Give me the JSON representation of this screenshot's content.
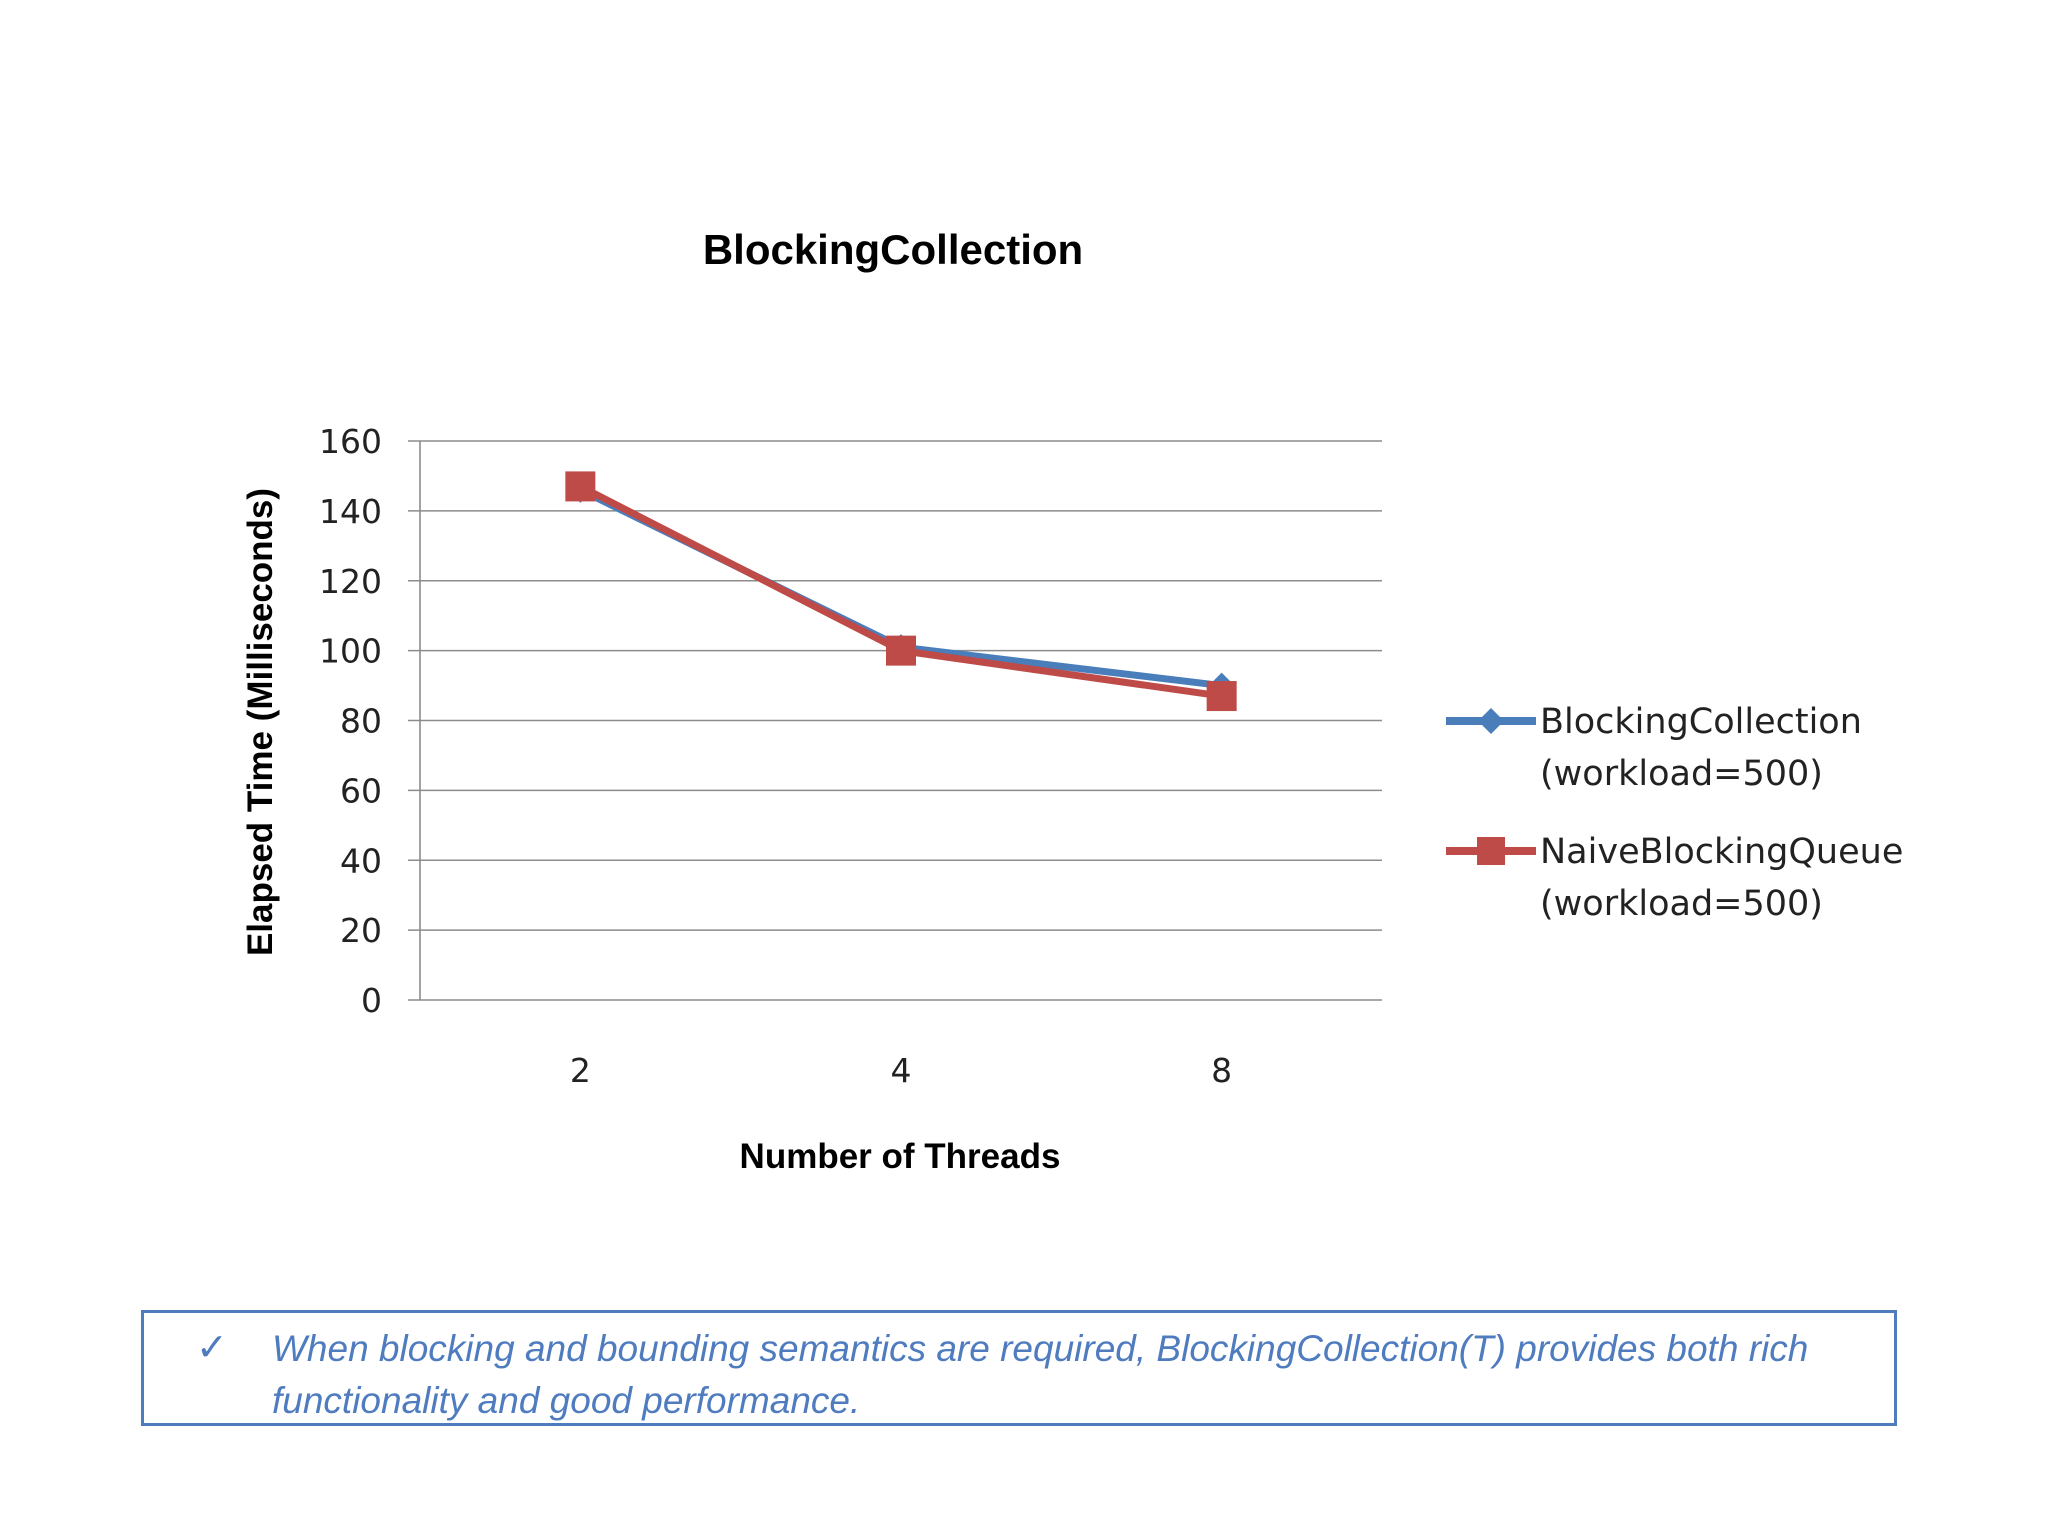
{
  "chart_data": {
    "type": "line",
    "title": "BlockingCollection",
    "xlabel": "Number of Threads",
    "ylabel": "Elapsed Time (Milliseconds)",
    "categories": [
      "2",
      "4",
      "8"
    ],
    "ylim": [
      0,
      160
    ],
    "yticks": [
      0,
      20,
      40,
      60,
      80,
      100,
      120,
      140,
      160
    ],
    "grid": true,
    "legend_position": "right",
    "series": [
      {
        "name": "BlockingCollection (workload=500)",
        "name_lines": [
          "BlockingCollection",
          "(workload=500)"
        ],
        "values": [
          146,
          101,
          90
        ],
        "color": "#4a7ebb",
        "marker": "diamond"
      },
      {
        "name": "NaiveBlockingQueue (workload=500)",
        "name_lines": [
          "NaiveBlockingQueue",
          "(workload=500)"
        ],
        "values": [
          147,
          100,
          87
        ],
        "color": "#be4b48",
        "marker": "square"
      }
    ]
  },
  "note": {
    "check_icon": "check-mark-icon",
    "text": "When blocking and bounding semantics are required, BlockingCollection(T) provides both rich functionality and good performance."
  }
}
